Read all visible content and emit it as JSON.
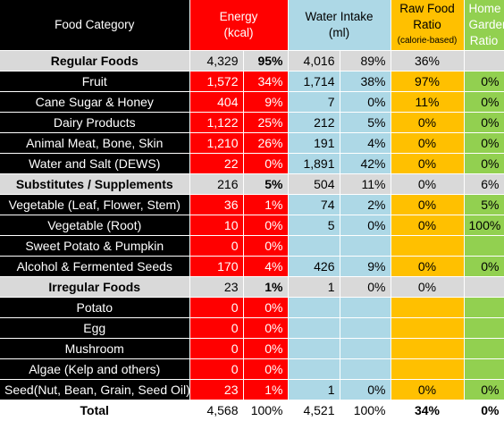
{
  "headers": {
    "food": "Food Category",
    "energy_line1": "Energy",
    "energy_line2": "(kcal)",
    "water_line1": "Water Intake",
    "water_line2": "(ml)",
    "raw_line1": "Raw Food",
    "raw_line2": "Ratio",
    "raw_line3": "(calorie-based)",
    "garden_line1": "Home",
    "garden_line2": "Garden",
    "garden_line3": "Ratio"
  },
  "rows": [
    {
      "type": "group",
      "label": "Regular Foods",
      "energy": "4,329",
      "energy_pct": "95%",
      "water": "4,016",
      "water_pct": "89%",
      "raw": "36%",
      "garden": ""
    },
    {
      "type": "item",
      "label": "Fruit",
      "energy": "1,572",
      "energy_pct": "34%",
      "water": "1,714",
      "water_pct": "38%",
      "raw": "97%",
      "garden": "0%"
    },
    {
      "type": "item",
      "label": "Cane Sugar & Honey",
      "energy": "404",
      "energy_pct": "9%",
      "water": "7",
      "water_pct": "0%",
      "raw": "11%",
      "garden": "0%"
    },
    {
      "type": "item",
      "label": "Dairy Products",
      "energy": "1,122",
      "energy_pct": "25%",
      "water": "212",
      "water_pct": "5%",
      "raw": "0%",
      "garden": "0%"
    },
    {
      "type": "item",
      "label": "Animal Meat, Bone, Skin",
      "energy": "1,210",
      "energy_pct": "26%",
      "water": "191",
      "water_pct": "4%",
      "raw": "0%",
      "garden": "0%"
    },
    {
      "type": "item",
      "label": "Water and Salt (DEWS)",
      "energy": "22",
      "energy_pct": "0%",
      "water": "1,891",
      "water_pct": "42%",
      "raw": "0%",
      "garden": "0%"
    },
    {
      "type": "group",
      "label": "Substitutes / Supplements",
      "energy": "216",
      "energy_pct": "5%",
      "water": "504",
      "water_pct": "11%",
      "raw": "0%",
      "garden": "6%"
    },
    {
      "type": "item",
      "label": "Vegetable (Leaf, Flower, Stem)",
      "energy": "36",
      "energy_pct": "1%",
      "water": "74",
      "water_pct": "2%",
      "raw": "0%",
      "garden": "5%"
    },
    {
      "type": "item",
      "label": "Vegetable (Root)",
      "energy": "10",
      "energy_pct": "0%",
      "water": "5",
      "water_pct": "0%",
      "raw": "0%",
      "garden": "100%"
    },
    {
      "type": "item",
      "label": "Sweet Potato & Pumpkin",
      "energy": "0",
      "energy_pct": "0%",
      "water": "",
      "water_pct": "",
      "raw": "",
      "garden": ""
    },
    {
      "type": "item",
      "label": "Alcohol & Fermented Seeds",
      "energy": "170",
      "energy_pct": "4%",
      "water": "426",
      "water_pct": "9%",
      "raw": "0%",
      "garden": "0%"
    },
    {
      "type": "group",
      "label": "Irregular Foods",
      "energy": "23",
      "energy_pct": "1%",
      "water": "1",
      "water_pct": "0%",
      "raw": "0%",
      "garden": ""
    },
    {
      "type": "item",
      "label": "Potato",
      "energy": "0",
      "energy_pct": "0%",
      "water": "",
      "water_pct": "",
      "raw": "",
      "garden": ""
    },
    {
      "type": "item",
      "label": "Egg",
      "energy": "0",
      "energy_pct": "0%",
      "water": "",
      "water_pct": "",
      "raw": "",
      "garden": ""
    },
    {
      "type": "item",
      "label": "Mushroom",
      "energy": "0",
      "energy_pct": "0%",
      "water": "",
      "water_pct": "",
      "raw": "",
      "garden": ""
    },
    {
      "type": "item",
      "label": "Algae (Kelp and others)",
      "energy": "0",
      "energy_pct": "0%",
      "water": "",
      "water_pct": "",
      "raw": "",
      "garden": ""
    },
    {
      "type": "item",
      "label": "Seed(Nut, Bean, Grain, Seed Oil)",
      "energy": "23",
      "energy_pct": "1%",
      "water": "1",
      "water_pct": "0%",
      "raw": "0%",
      "garden": "0%"
    },
    {
      "type": "total",
      "label": "Total",
      "energy": "4,568",
      "energy_pct": "100%",
      "water": "4,521",
      "water_pct": "100%",
      "raw": "34%",
      "garden": "0%"
    }
  ],
  "colors": {
    "label_bg": "#000000",
    "energy_bg": "#ff0000",
    "water_bg": "#add8e6",
    "raw_bg": "#ffc000",
    "garden_bg": "#92d050",
    "group_bg": "#d9d9d9"
  }
}
